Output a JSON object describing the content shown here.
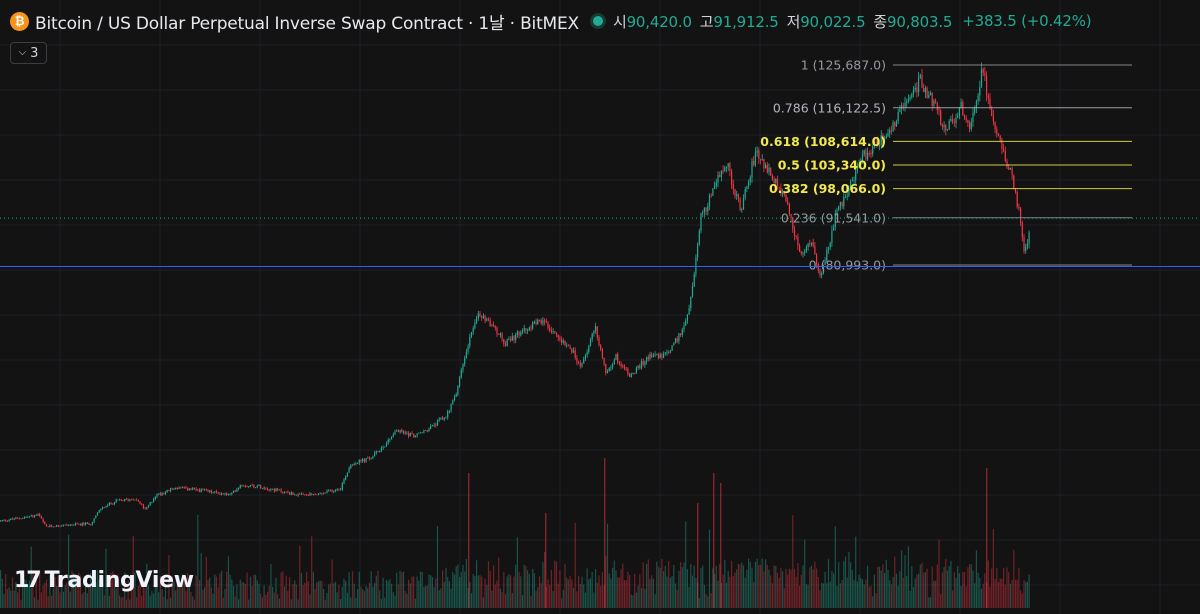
{
  "header": {
    "title": "Bitcoin / US Dollar Perpetual Inverse Swap Contract · 1날 · BitMEX",
    "icon": "bitcoin-icon",
    "open_label": "시",
    "open": "90,420.0",
    "high_label": "고",
    "high": "91,912.5",
    "low_label": "저",
    "low": "90,022.5",
    "close_label": "종",
    "close": "90,803.5",
    "change": "+383.5 (+0.42%)",
    "up_color": "#22ab94"
  },
  "indicator_toggle": {
    "count": "3"
  },
  "logo": {
    "text": "TradingView"
  },
  "chart_data": {
    "type": "candlestick",
    "fib_levels": [
      {
        "ratio": 1,
        "price": 125687.0,
        "label": "1 (125,687.0)",
        "color": "#9598a1"
      },
      {
        "ratio": 0.786,
        "price": 116122.5,
        "label": "0.786 (116,122.5)",
        "color": "#b2b5be"
      },
      {
        "ratio": 0.618,
        "price": 108614.0,
        "label": "0.618 (108,614.0)",
        "color": "#f2e94e"
      },
      {
        "ratio": 0.5,
        "price": 103340.0,
        "label": "0.5 (103,340.0)",
        "color": "#f2e94e"
      },
      {
        "ratio": 0.382,
        "price": 98066.0,
        "label": "0.382 (98,066.0)",
        "color": "#f2e94e"
      },
      {
        "ratio": 0.236,
        "price": 91541.0,
        "label": "0.236 (91,541.0)",
        "color": "#9598a1"
      },
      {
        "ratio": 0,
        "price": 80993.0,
        "label": "0 (80,993.0)",
        "color": "#9598a1"
      }
    ],
    "horizontal_line_price": 80993.0,
    "last_price": 90803.5,
    "up_color": "#22ab94",
    "down_color": "#f23645",
    "price_path": [
      [
        0,
        23800
      ],
      [
        30,
        24800
      ],
      [
        38,
        25200
      ],
      [
        45,
        22500
      ],
      [
        60,
        22800
      ],
      [
        90,
        23200
      ],
      [
        100,
        26500
      ],
      [
        115,
        28200
      ],
      [
        135,
        28800
      ],
      [
        145,
        26200
      ],
      [
        155,
        29500
      ],
      [
        175,
        31200
      ],
      [
        200,
        30600
      ],
      [
        230,
        29600
      ],
      [
        240,
        31900
      ],
      [
        260,
        31500
      ],
      [
        285,
        30200
      ],
      [
        300,
        29500
      ],
      [
        320,
        29800
      ],
      [
        340,
        31200
      ],
      [
        350,
        36500
      ],
      [
        370,
        37800
      ],
      [
        385,
        41000
      ],
      [
        395,
        44000
      ],
      [
        415,
        42800
      ],
      [
        430,
        44600
      ],
      [
        445,
        47200
      ],
      [
        455,
        51800
      ],
      [
        462,
        58500
      ],
      [
        470,
        66000
      ],
      [
        478,
        69800
      ],
      [
        490,
        68200
      ],
      [
        505,
        63500
      ],
      [
        520,
        65800
      ],
      [
        540,
        68800
      ],
      [
        555,
        65400
      ],
      [
        570,
        62800
      ],
      [
        580,
        57600
      ],
      [
        595,
        67300
      ],
      [
        605,
        57000
      ],
      [
        615,
        60500
      ],
      [
        630,
        56200
      ],
      [
        650,
        61000
      ],
      [
        665,
        60800
      ],
      [
        682,
        66400
      ],
      [
        690,
        72800
      ],
      [
        700,
        91500
      ],
      [
        712,
        96800
      ],
      [
        725,
        104500
      ],
      [
        740,
        93200
      ],
      [
        755,
        106200
      ],
      [
        770,
        101500
      ],
      [
        785,
        95200
      ],
      [
        800,
        83700
      ],
      [
        812,
        85800
      ],
      [
        820,
        78400
      ],
      [
        835,
        91800
      ],
      [
        845,
        96200
      ],
      [
        860,
        104500
      ],
      [
        875,
        108200
      ],
      [
        890,
        110800
      ],
      [
        900,
        115500
      ],
      [
        910,
        118800
      ],
      [
        920,
        122300
      ],
      [
        935,
        116400
      ],
      [
        945,
        110500
      ],
      [
        960,
        116400
      ],
      [
        970,
        111800
      ],
      [
        982,
        124800
      ],
      [
        992,
        113500
      ],
      [
        1000,
        108300
      ],
      [
        1010,
        101500
      ],
      [
        1018,
        93200
      ],
      [
        1024,
        82600
      ],
      [
        1030,
        91200
      ]
    ]
  }
}
